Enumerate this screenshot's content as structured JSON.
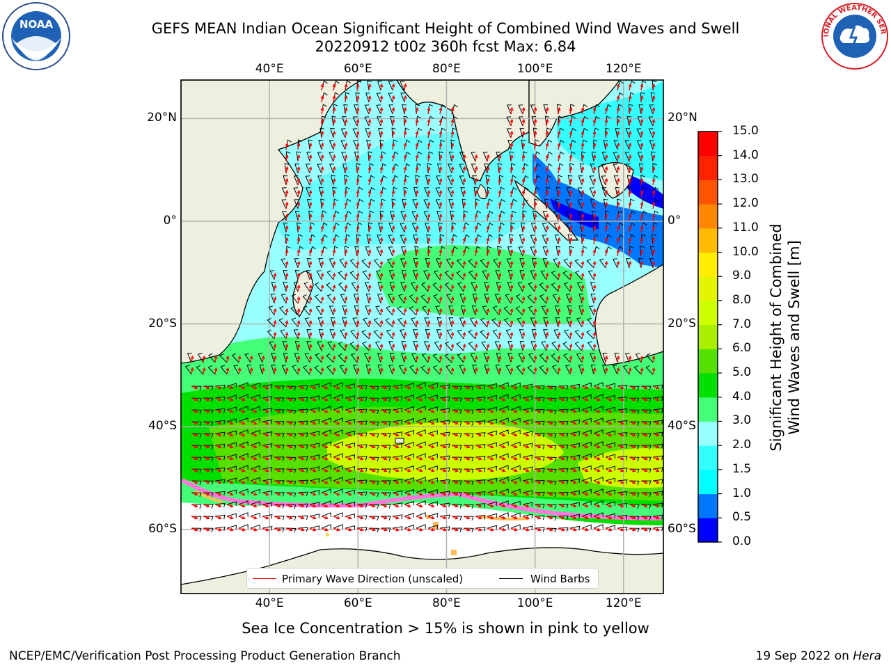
{
  "title": {
    "line1": "GEFS MEAN Indian Ocean Significant Height of Combined Wind Waves and Swell",
    "line2": "20220912 t00z 360h fcst   Max: 6.84"
  },
  "logos": {
    "left": {
      "name": "noaa-logo",
      "text": "NOAA"
    },
    "right": {
      "name": "nws-logo",
      "text": "NATIONAL WEATHER SERVICE"
    }
  },
  "axes": {
    "lon_labels": [
      "40°E",
      "60°E",
      "80°E",
      "100°E",
      "120°E"
    ],
    "lon_values": [
      40,
      60,
      80,
      100,
      120
    ],
    "lat_labels": [
      "20°N",
      "0°",
      "20°S",
      "40°S",
      "60°S"
    ],
    "lat_values": [
      20,
      0,
      -20,
      -40,
      -60
    ],
    "lon_range": [
      20,
      129
    ],
    "lat_range": [
      -72.5,
      27.5
    ],
    "grid": true
  },
  "legend": {
    "placement": "bottom-center",
    "items": [
      {
        "label": "Primary Wave Direction (unscaled)",
        "color": "#ff0000"
      },
      {
        "label": "Wind Barbs",
        "color": "#000000"
      }
    ]
  },
  "colorbar": {
    "label_line1": "Significant Height of Combined",
    "label_line2": "Wind Waves and Swell [m]",
    "min": 0,
    "max": 15,
    "ticks": [
      "0.0",
      "0.5",
      "1.0",
      "1.5",
      "2.0",
      "3.0",
      "4.0",
      "5.0",
      "6.0",
      "7.0",
      "8.0",
      "9.0",
      "10.0",
      "11.0",
      "12.0",
      "13.0",
      "14.0",
      "15.0"
    ],
    "colors": [
      "#0000ff",
      "#0077ff",
      "#00ffff",
      "#33ffff",
      "#99ffff",
      "#44ff77",
      "#00e000",
      "#55e000",
      "#aaee00",
      "#ccff00",
      "#e5f500",
      "#ffee00",
      "#ffbb00",
      "#ff8800",
      "#ff5500",
      "#ff2200",
      "#ff0000"
    ]
  },
  "footer": {
    "note": "Sea Ice Concentration > 15% is shown in pink to yellow",
    "credit_left": "NCEP/EMC/Verification Post Processing Product Generation Branch",
    "credit_right_date": "19 Sep 2022 on ",
    "credit_right_host": "Hera"
  }
}
